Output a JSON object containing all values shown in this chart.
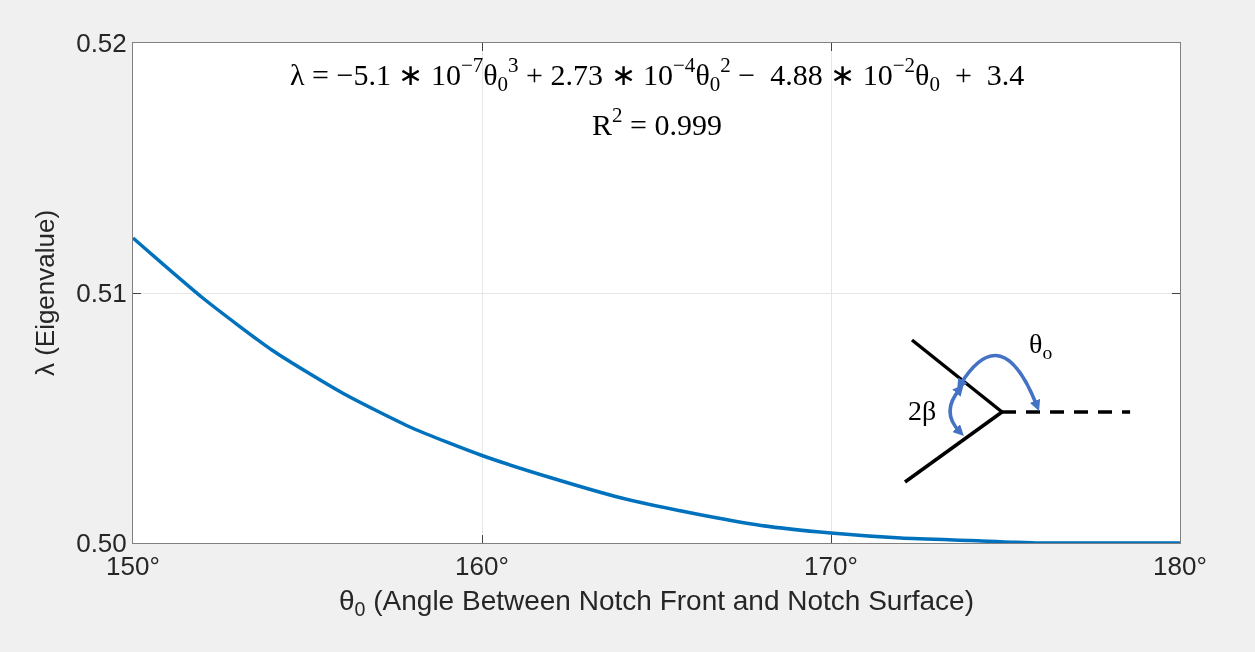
{
  "chart_data": {
    "type": "line",
    "xlabel": "θ$_{0}$ (Angle Between Notch Front and Notch Surface)",
    "ylabel": "λ (Eigenvalue)",
    "x": [
      150,
      152,
      154,
      156,
      158,
      160,
      162,
      164,
      166,
      168,
      170,
      172,
      174,
      176,
      178,
      180
    ],
    "series": [
      {
        "color": "#0072bd",
        "values": [
          0.5122,
          0.5098,
          0.5077,
          0.506,
          0.5046,
          0.5035,
          0.5026,
          0.5018,
          0.5012,
          0.5007,
          0.5004,
          0.5002,
          0.5001,
          0.5,
          0.5,
          0.5
        ]
      }
    ],
    "xlim": [
      150,
      180
    ],
    "xticks": [
      {
        "value": 150,
        "label": "150°"
      },
      {
        "value": 160,
        "label": "160°"
      },
      {
        "value": 170,
        "label": "170°"
      },
      {
        "value": 180,
        "label": "180°"
      }
    ],
    "ylim": [
      0.5,
      0.52
    ],
    "yticks": [
      {
        "value": 0.5,
        "label": "0.50"
      },
      {
        "value": 0.51,
        "label": "0.51"
      },
      {
        "value": 0.52,
        "label": "0.52"
      }
    ],
    "grid": true,
    "marker": "none",
    "line_style": "solid",
    "annotations": [
      "λ = −5.1 ∗ 10$^{−7}$θ$_{0}$$^{3}$ + 2.73 ∗ 10$^{−4}$θ$_{0}$$^{2}$ −  4.88 ∗ 10$^{−2}$θ$_{0}$  +  3.4",
      "R$^{2}$ = 0.999",
      "2β",
      "θ$_{o}$"
    ]
  }
}
